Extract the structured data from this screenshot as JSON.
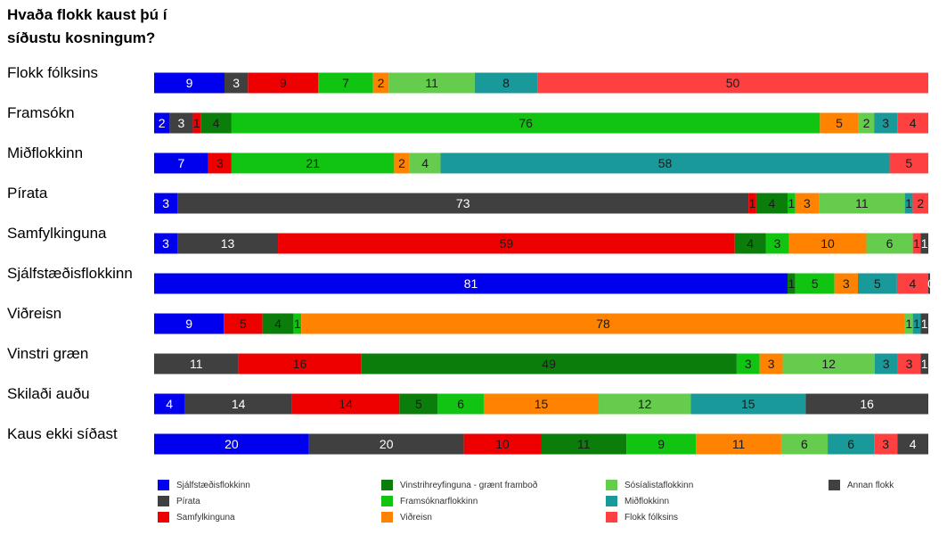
{
  "chart_data": {
    "type": "bar",
    "stacked": true,
    "orientation": "horizontal",
    "title": "Hvaða flokk kaust þú í síðustu kosningum?",
    "categories": [
      "Flokk fólksins",
      "Framsókn",
      "Miðflokkinn",
      "Pírata",
      "Samfylkinguna",
      "Sjálfstæðisflokkinn",
      "Viðreisn",
      "Vinstri græn",
      "Skilaði auðu",
      "Kaus ekki síðast"
    ],
    "parties": [
      {
        "key": "d",
        "name": "Sjálfstæðisflokkinn",
        "color": "#0000ee",
        "text_color": "#ffffff"
      },
      {
        "key": "p",
        "name": "Pírata",
        "color": "#404040",
        "text_color": "#ffffff"
      },
      {
        "key": "s",
        "name": "Samfylkinguna",
        "color": "#ee0000",
        "text_color": "#1a1a1a"
      },
      {
        "key": "v",
        "name": "Vinstrihreyfinguna - grænt framboð",
        "color": "#0a7d0a",
        "text_color": "#1a1a1a"
      },
      {
        "key": "b",
        "name": "Framsóknarflokkinn",
        "color": "#12c412",
        "text_color": "#1a1a1a"
      },
      {
        "key": "c",
        "name": "Viðreisn",
        "color": "#ff8300",
        "text_color": "#1a1a1a"
      },
      {
        "key": "j",
        "name": "Sósíalistaflokkinn",
        "color": "#66cc4d",
        "text_color": "#1a1a1a"
      },
      {
        "key": "m",
        "name": "Miðflokkinn",
        "color": "#199999",
        "text_color": "#1a1a1a"
      },
      {
        "key": "f",
        "name": "Flokk fólksins",
        "color": "#ff4040",
        "text_color": "#1a1a1a"
      },
      {
        "key": "o",
        "name": "Annan flokk",
        "color": "#404040",
        "text_color": "#ffffff"
      }
    ],
    "rows": [
      {
        "label": "Flokk fólksins",
        "segments": [
          [
            "d",
            9
          ],
          [
            "p",
            3
          ],
          [
            "s",
            9
          ],
          [
            "b",
            7
          ],
          [
            "c",
            2
          ],
          [
            "j",
            11
          ],
          [
            "m",
            8
          ],
          [
            "f",
            50
          ]
        ]
      },
      {
        "label": "Framsókn",
        "segments": [
          [
            "d",
            2
          ],
          [
            "p",
            3
          ],
          [
            "s",
            1
          ],
          [
            "v",
            4
          ],
          [
            "b",
            76
          ],
          [
            "c",
            5
          ],
          [
            "j",
            2
          ],
          [
            "m",
            3
          ],
          [
            "f",
            4
          ]
        ]
      },
      {
        "label": "Miðflokkinn",
        "segments": [
          [
            "d",
            7
          ],
          [
            "s",
            3
          ],
          [
            "b",
            21
          ],
          [
            "c",
            2
          ],
          [
            "j",
            4
          ],
          [
            "m",
            58
          ],
          [
            "f",
            5
          ]
        ]
      },
      {
        "label": "Pírata",
        "segments": [
          [
            "d",
            3
          ],
          [
            "p",
            73
          ],
          [
            "s",
            1
          ],
          [
            "v",
            4
          ],
          [
            "b",
            1
          ],
          [
            "c",
            3
          ],
          [
            "j",
            11
          ],
          [
            "m",
            1
          ],
          [
            "f",
            2
          ]
        ]
      },
      {
        "label": "Samfylkinguna",
        "segments": [
          [
            "d",
            3
          ],
          [
            "p",
            13
          ],
          [
            "s",
            59
          ],
          [
            "v",
            4
          ],
          [
            "b",
            3
          ],
          [
            "c",
            10
          ],
          [
            "j",
            6
          ],
          [
            "f",
            1
          ],
          [
            "o",
            1
          ]
        ]
      },
      {
        "label": "Sjálfstæðisflokkinn",
        "segments": [
          [
            "d",
            81
          ],
          [
            "s",
            0
          ],
          [
            "v",
            1
          ],
          [
            "b",
            5
          ],
          [
            "c",
            3
          ],
          [
            "m",
            5
          ],
          [
            "f",
            4
          ],
          [
            "o",
            0
          ]
        ]
      },
      {
        "label": "Viðreisn",
        "segments": [
          [
            "d",
            9
          ],
          [
            "s",
            5
          ],
          [
            "v",
            4
          ],
          [
            "b",
            1
          ],
          [
            "c",
            78
          ],
          [
            "j",
            1
          ],
          [
            "m",
            1
          ],
          [
            "o",
            1
          ]
        ]
      },
      {
        "label": "Vinstri græn",
        "segments": [
          [
            "d",
            0
          ],
          [
            "p",
            11
          ],
          [
            "s",
            16
          ],
          [
            "v",
            49
          ],
          [
            "b",
            3
          ],
          [
            "c",
            3
          ],
          [
            "j",
            12
          ],
          [
            "m",
            3
          ],
          [
            "f",
            3
          ],
          [
            "o",
            1
          ]
        ]
      },
      {
        "label": "Skilaði auðu",
        "segments": [
          [
            "d",
            4
          ],
          [
            "p",
            14
          ],
          [
            "s",
            14
          ],
          [
            "v",
            5
          ],
          [
            "b",
            6
          ],
          [
            "c",
            15
          ],
          [
            "j",
            12
          ],
          [
            "m",
            15
          ],
          [
            "o",
            16
          ]
        ]
      },
      {
        "label": "Kaus ekki síðast",
        "segments": [
          [
            "d",
            20
          ],
          [
            "p",
            20
          ],
          [
            "s",
            10
          ],
          [
            "v",
            11
          ],
          [
            "b",
            9
          ],
          [
            "c",
            11
          ],
          [
            "j",
            6
          ],
          [
            "m",
            6
          ],
          [
            "f",
            3
          ],
          [
            "o",
            4
          ]
        ]
      }
    ],
    "legend_placement": "bottom",
    "legend_order": [
      "d",
      "p",
      "s",
      "v",
      "b",
      "c",
      "j",
      "m",
      "f",
      "o"
    ]
  }
}
